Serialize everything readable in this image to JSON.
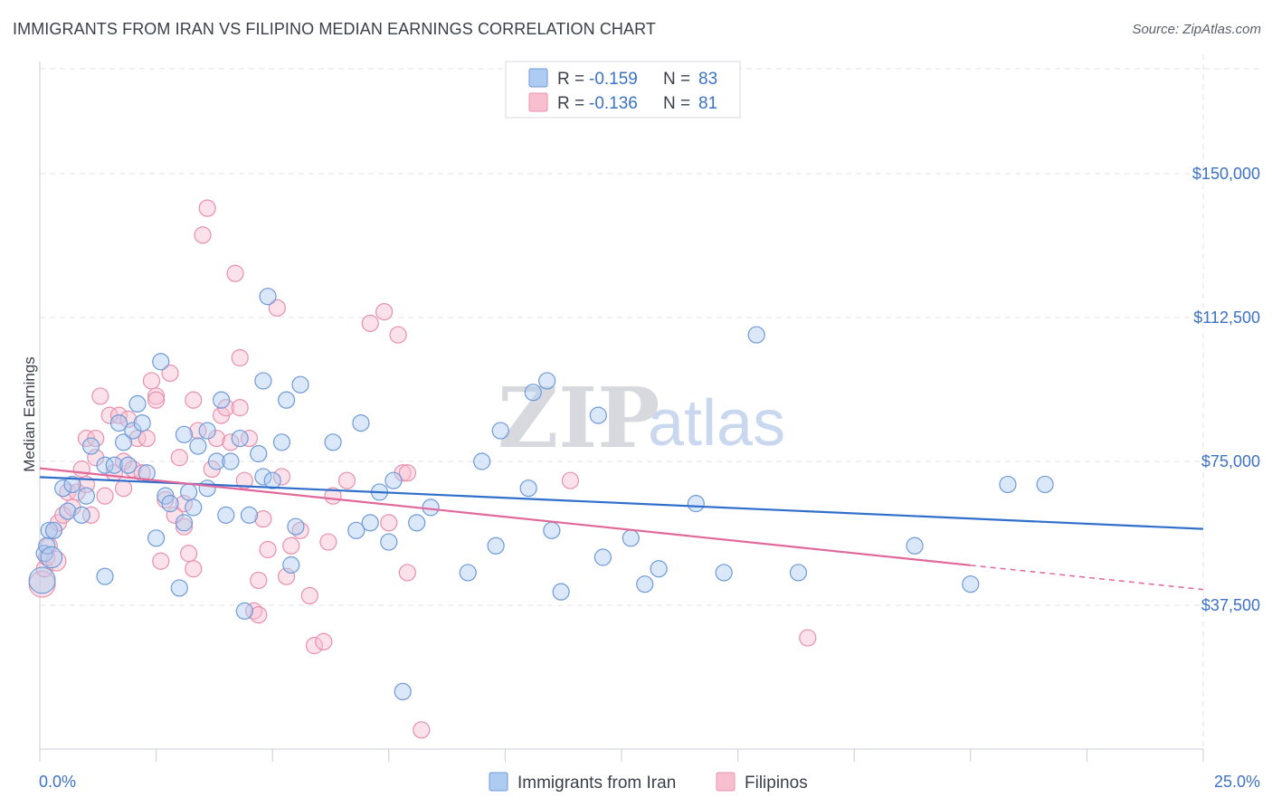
{
  "title": "IMMIGRANTS FROM IRAN VS FILIPINO MEDIAN EARNINGS CORRELATION CHART",
  "source": "Source: ZipAtlas.com",
  "watermark": {
    "zip": "ZIP",
    "atlas": "atlas"
  },
  "legend": {
    "rows": [
      {
        "r_label": "R =",
        "r_value": "-0.159",
        "n_label": "N =",
        "n_value": "83"
      },
      {
        "r_label": "R =",
        "r_value": "-0.136",
        "n_label": "N =",
        "n_value": "81"
      }
    ]
  },
  "colors": {
    "blue_fill": "#aecbf2",
    "blue_stroke": "#6f9ad8",
    "blue_line": "#2f6fcb",
    "pink_fill": "#f7bfd0",
    "pink_stroke": "#e890ad",
    "pink_line": "#e0689a",
    "grid": "#dfe3ea",
    "axis_text": "#3d72c4"
  },
  "chart_data": {
    "type": "scatter",
    "title": "IMMIGRANTS FROM IRAN VS FILIPINO MEDIAN EARNINGS CORRELATION CHART",
    "xlabel": "",
    "ylabel": "Median Earnings",
    "xlim": [
      0,
      25
    ],
    "ylim": [
      0,
      155000
    ],
    "x_tick_labels": [
      "0.0%",
      "25.0%"
    ],
    "y_ticks": [
      37500,
      75000,
      112500,
      150000
    ],
    "y_tick_labels": [
      "$37,500",
      "$75,000",
      "$112,500",
      "$150,000"
    ],
    "grid": true,
    "legend_position": "top-center",
    "series": [
      {
        "name": "Immigrants from Iran",
        "r": -0.159,
        "n": 83,
        "trend": {
          "x": [
            0,
            25
          ],
          "y": [
            70900,
            57400
          ],
          "dashed_from": null
        },
        "points": [
          [
            0.05,
            44000,
            1.6
          ],
          [
            0.1,
            51000,
            1
          ],
          [
            0.15,
            53000,
            1
          ],
          [
            0.2,
            57000,
            1
          ],
          [
            0.3,
            57000,
            1
          ],
          [
            0.5,
            68000,
            1
          ],
          [
            0.6,
            62000,
            1
          ],
          [
            0.7,
            69000,
            1
          ],
          [
            0.9,
            61000,
            1
          ],
          [
            1.0,
            66000,
            1
          ],
          [
            1.1,
            79000,
            1
          ],
          [
            1.4,
            74000,
            1
          ],
          [
            1.4,
            45000,
            1
          ],
          [
            1.6,
            74000,
            1
          ],
          [
            1.7,
            85000,
            1
          ],
          [
            1.8,
            80000,
            1
          ],
          [
            1.9,
            74000,
            1
          ],
          [
            2.0,
            83000,
            1
          ],
          [
            2.1,
            90000,
            1
          ],
          [
            2.2,
            85000,
            1
          ],
          [
            2.3,
            72000,
            1
          ],
          [
            2.5,
            55000,
            1
          ],
          [
            2.6,
            101000,
            1
          ],
          [
            2.7,
            66000,
            1
          ],
          [
            2.8,
            64000,
            1
          ],
          [
            3.0,
            42000,
            1
          ],
          [
            3.1,
            82000,
            1
          ],
          [
            3.1,
            59000,
            1
          ],
          [
            3.2,
            67000,
            1
          ],
          [
            3.3,
            63000,
            1
          ],
          [
            3.4,
            79000,
            1
          ],
          [
            3.6,
            83000,
            1
          ],
          [
            3.6,
            68000,
            1
          ],
          [
            3.8,
            75000,
            1
          ],
          [
            3.9,
            91000,
            1
          ],
          [
            4.0,
            61000,
            1
          ],
          [
            4.1,
            75000,
            1
          ],
          [
            4.3,
            81000,
            1
          ],
          [
            4.4,
            36000,
            1
          ],
          [
            4.5,
            61000,
            1
          ],
          [
            4.7,
            77000,
            1
          ],
          [
            4.8,
            71000,
            1
          ],
          [
            4.8,
            96000,
            1
          ],
          [
            4.9,
            118000,
            1
          ],
          [
            5.0,
            70000,
            1
          ],
          [
            5.2,
            80000,
            1
          ],
          [
            5.3,
            91000,
            1
          ],
          [
            5.4,
            48000,
            1
          ],
          [
            5.5,
            58000,
            1
          ],
          [
            5.6,
            95000,
            1
          ],
          [
            6.3,
            80000,
            1
          ],
          [
            6.8,
            57000,
            1
          ],
          [
            6.9,
            85000,
            1
          ],
          [
            7.1,
            59000,
            1
          ],
          [
            7.3,
            67000,
            1
          ],
          [
            7.5,
            54000,
            1
          ],
          [
            7.6,
            70000,
            1
          ],
          [
            8.1,
            59000,
            1
          ],
          [
            8.4,
            63000,
            1
          ],
          [
            7.8,
            15000,
            1
          ],
          [
            9.2,
            46000,
            1
          ],
          [
            9.5,
            75000,
            1
          ],
          [
            9.8,
            53000,
            1
          ],
          [
            9.9,
            83000,
            1
          ],
          [
            10.5,
            68000,
            1
          ],
          [
            10.6,
            93000,
            1
          ],
          [
            10.9,
            96000,
            1
          ],
          [
            11.0,
            57000,
            1
          ],
          [
            11.2,
            41000,
            1
          ],
          [
            12.0,
            87000,
            1
          ],
          [
            12.1,
            50000,
            1
          ],
          [
            12.7,
            55000,
            1
          ],
          [
            13.0,
            43000,
            1
          ],
          [
            13.3,
            47000,
            1
          ],
          [
            14.1,
            64000,
            1
          ],
          [
            14.7,
            46000,
            1
          ],
          [
            15.4,
            108000,
            1
          ],
          [
            16.3,
            46000,
            1
          ],
          [
            18.8,
            53000,
            1
          ],
          [
            20.0,
            43000,
            1
          ],
          [
            20.8,
            69000,
            1
          ],
          [
            21.6,
            69000,
            1
          ],
          [
            0.25,
            50000,
            1.3
          ]
        ]
      },
      {
        "name": "Filipinos",
        "r": -0.136,
        "n": 81,
        "trend": {
          "x": [
            0,
            25
          ],
          "y": [
            73200,
            41600
          ],
          "dashed_from": 20
        },
        "points": [
          [
            0.05,
            43000,
            1.6
          ],
          [
            0.1,
            47000,
            1
          ],
          [
            0.15,
            50000,
            1
          ],
          [
            0.2,
            53000,
            1
          ],
          [
            0.3,
            57000,
            1
          ],
          [
            0.4,
            59000,
            1
          ],
          [
            0.5,
            61000,
            1
          ],
          [
            0.6,
            67000,
            1
          ],
          [
            0.7,
            63000,
            1
          ],
          [
            0.8,
            67000,
            1
          ],
          [
            0.9,
            73000,
            1
          ],
          [
            1.0,
            69000,
            1
          ],
          [
            1.0,
            81000,
            1
          ],
          [
            1.1,
            61000,
            1
          ],
          [
            1.2,
            81000,
            1
          ],
          [
            1.2,
            76000,
            1
          ],
          [
            1.3,
            92000,
            1
          ],
          [
            1.4,
            66000,
            1
          ],
          [
            1.5,
            87000,
            1
          ],
          [
            1.6,
            72000,
            1
          ],
          [
            1.7,
            87000,
            1
          ],
          [
            1.8,
            75000,
            1
          ],
          [
            1.8,
            68000,
            1
          ],
          [
            1.9,
            86000,
            1
          ],
          [
            2.0,
            73000,
            1
          ],
          [
            2.1,
            81000,
            1
          ],
          [
            2.2,
            72000,
            1
          ],
          [
            2.3,
            81000,
            1
          ],
          [
            2.4,
            96000,
            1
          ],
          [
            2.5,
            92000,
            1
          ],
          [
            2.5,
            91000,
            1
          ],
          [
            2.6,
            49000,
            1
          ],
          [
            2.7,
            65000,
            1
          ],
          [
            2.8,
            98000,
            1
          ],
          [
            2.9,
            61000,
            1
          ],
          [
            3.0,
            76000,
            1
          ],
          [
            3.1,
            58000,
            1
          ],
          [
            3.1,
            64000,
            1
          ],
          [
            3.2,
            51000,
            1
          ],
          [
            3.3,
            47000,
            1
          ],
          [
            3.4,
            83000,
            1
          ],
          [
            3.5,
            134000,
            1
          ],
          [
            3.6,
            141000,
            1
          ],
          [
            3.7,
            73000,
            1
          ],
          [
            3.8,
            81000,
            1
          ],
          [
            3.9,
            87000,
            1
          ],
          [
            4.0,
            89000,
            1
          ],
          [
            4.1,
            80000,
            1
          ],
          [
            4.2,
            124000,
            1
          ],
          [
            4.3,
            102000,
            1
          ],
          [
            4.3,
            89000,
            1
          ],
          [
            4.5,
            81000,
            1
          ],
          [
            4.6,
            36000,
            1
          ],
          [
            4.7,
            44000,
            1
          ],
          [
            4.8,
            60000,
            1
          ],
          [
            4.9,
            52000,
            1
          ],
          [
            5.1,
            115000,
            1
          ],
          [
            5.2,
            71000,
            1
          ],
          [
            5.3,
            45000,
            1
          ],
          [
            5.4,
            53000,
            1
          ],
          [
            5.6,
            57000,
            1
          ],
          [
            5.8,
            40000,
            1
          ],
          [
            5.9,
            27000,
            1
          ],
          [
            6.1,
            28000,
            1
          ],
          [
            6.2,
            54000,
            1
          ],
          [
            6.3,
            66000,
            1
          ],
          [
            6.6,
            70000,
            1
          ],
          [
            7.1,
            111000,
            1
          ],
          [
            7.4,
            114000,
            1
          ],
          [
            7.7,
            108000,
            1
          ],
          [
            7.8,
            72000,
            1
          ],
          [
            7.9,
            72000,
            1
          ],
          [
            7.9,
            46000,
            1
          ],
          [
            7.5,
            59000,
            1
          ],
          [
            4.7,
            35000,
            1
          ],
          [
            8.2,
            5000,
            1
          ],
          [
            11.4,
            70000,
            1
          ],
          [
            16.5,
            29000,
            1
          ],
          [
            4.4,
            70000,
            1
          ],
          [
            3.3,
            91000,
            1
          ],
          [
            0.35,
            49000,
            1.2
          ]
        ]
      }
    ]
  },
  "bottom_legend": [
    "Immigrants from Iran",
    "Filipinos"
  ]
}
